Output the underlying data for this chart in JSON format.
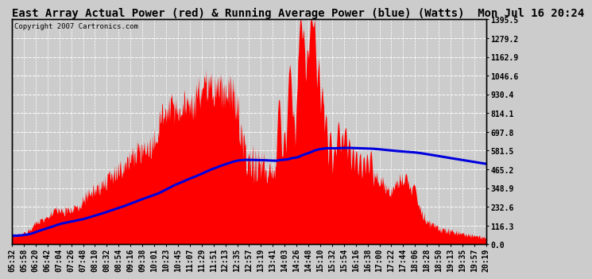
{
  "title": "East Array Actual Power (red) & Running Average Power (blue) (Watts)  Mon Jul 16 20:24",
  "copyright": "Copyright 2007 Cartronics.com",
  "ylabel_right_ticks": [
    0.0,
    116.3,
    232.6,
    348.9,
    465.2,
    581.5,
    697.8,
    814.1,
    930.4,
    1046.6,
    1162.9,
    1279.2,
    1395.5
  ],
  "ymax": 1395.5,
  "ymin": 0.0,
  "bg_color": "#cccccc",
  "plot_bg_color": "#cccccc",
  "grid_color": "#ffffff",
  "red_color": "#ff0000",
  "blue_color": "#0000dd",
  "title_fontsize": 10,
  "copyright_fontsize": 6.5,
  "tick_fontsize": 7,
  "x_labels": [
    "05:32",
    "05:58",
    "06:20",
    "06:42",
    "07:04",
    "07:26",
    "07:48",
    "08:10",
    "08:32",
    "08:54",
    "09:16",
    "09:38",
    "10:01",
    "10:23",
    "10:45",
    "11:07",
    "11:29",
    "11:51",
    "12:13",
    "12:35",
    "12:57",
    "13:19",
    "13:41",
    "14:03",
    "14:26",
    "14:48",
    "15:10",
    "15:32",
    "15:54",
    "16:16",
    "16:38",
    "17:00",
    "17:22",
    "17:44",
    "18:06",
    "18:28",
    "18:50",
    "19:13",
    "19:35",
    "19:57",
    "20:19"
  ]
}
